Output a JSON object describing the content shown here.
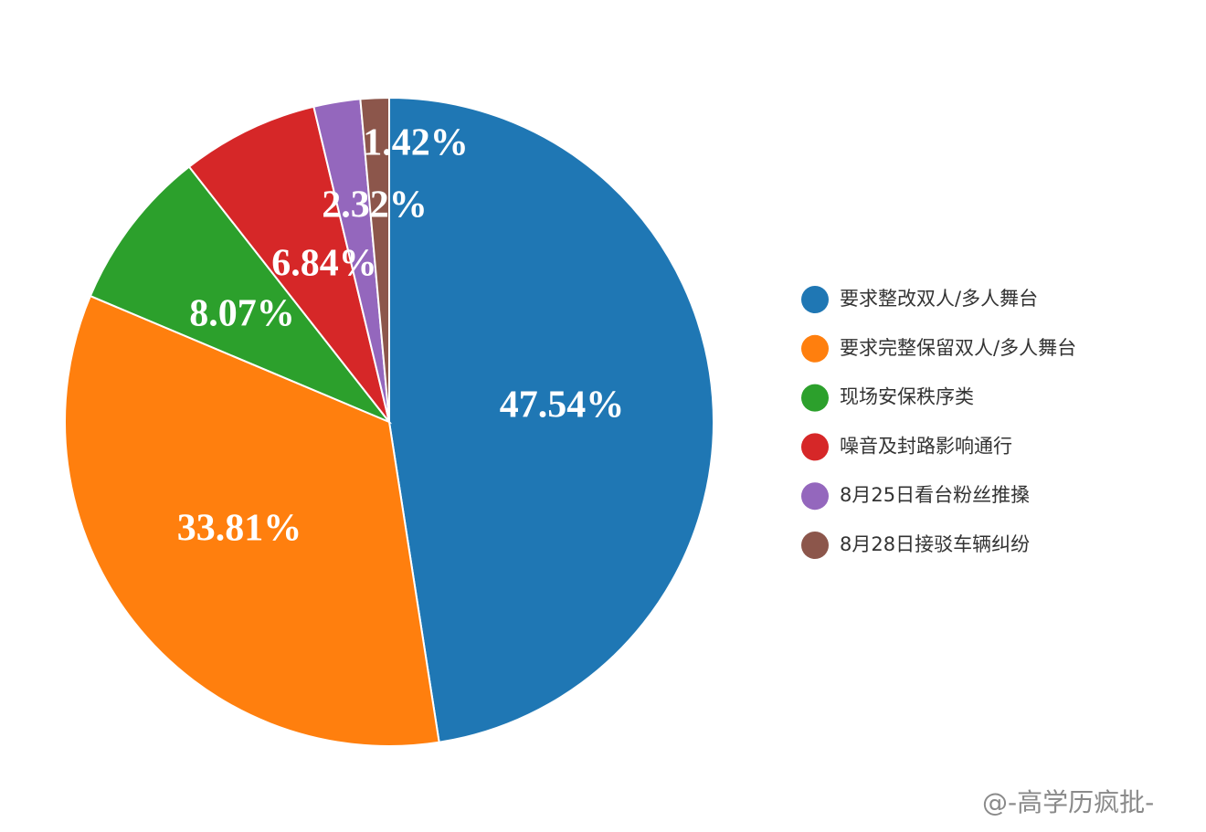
{
  "chart_data": {
    "type": "pie",
    "categories": [
      "要求整改双人/多人舞台",
      "要求完整保留双人/多人舞台",
      "现场安保秩序类",
      "噪音及封路影响通行",
      "8月25日看台粉丝推搡",
      "8月28日接驳车辆纠纷"
    ],
    "values": [
      47.54,
      33.81,
      8.07,
      6.84,
      2.32,
      1.42
    ],
    "value_labels": [
      "47.54%",
      "33.81%",
      "8.07%",
      "6.84%",
      "2.32%",
      "1.42%"
    ],
    "colors": [
      "#1f77b4",
      "#ff7f0e",
      "#2ca02c",
      "#d62728",
      "#9467bd",
      "#8c564b"
    ],
    "legend": "right"
  },
  "watermark": "@-高学历疯批-"
}
